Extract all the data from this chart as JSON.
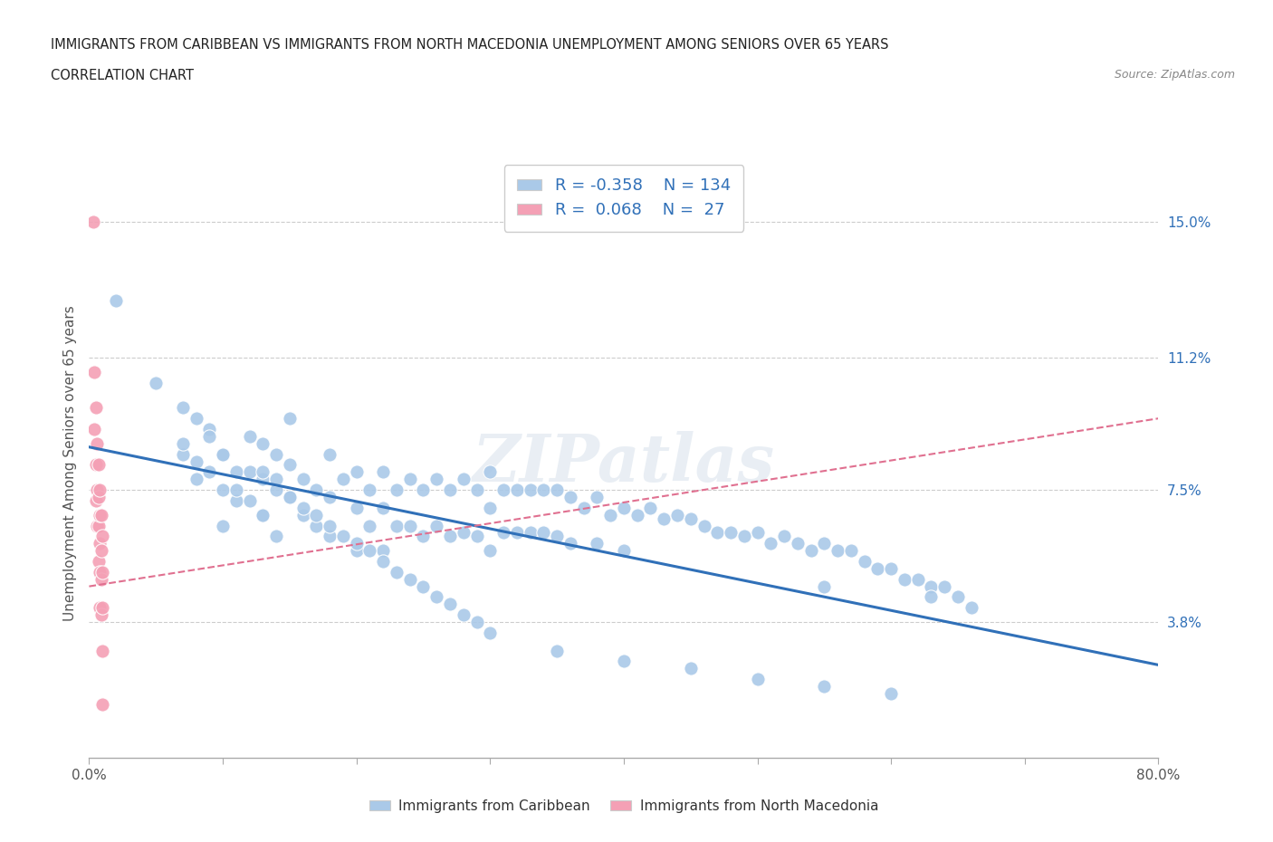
{
  "title_line1": "IMMIGRANTS FROM CARIBBEAN VS IMMIGRANTS FROM NORTH MACEDONIA UNEMPLOYMENT AMONG SENIORS OVER 65 YEARS",
  "title_line2": "CORRELATION CHART",
  "source": "Source: ZipAtlas.com",
  "ylabel": "Unemployment Among Seniors over 65 years",
  "xlim": [
    0.0,
    0.8
  ],
  "ylim": [
    0.0,
    0.165
  ],
  "xticks": [
    0.0,
    0.1,
    0.2,
    0.3,
    0.4,
    0.5,
    0.6,
    0.7,
    0.8
  ],
  "xticklabels": [
    "0.0%",
    "",
    "",
    "",
    "",
    "",
    "",
    "",
    "80.0%"
  ],
  "ytick_positions": [
    0.038,
    0.075,
    0.112,
    0.15
  ],
  "ytick_labels": [
    "3.8%",
    "7.5%",
    "11.2%",
    "15.0%"
  ],
  "r_caribbean": -0.358,
  "n_caribbean": 134,
  "r_macedonia": 0.068,
  "n_macedonia": 27,
  "color_caribbean": "#aac9e8",
  "color_macedonia": "#f4a0b5",
  "color_line_caribbean": "#3070b8",
  "color_line_macedonia": "#e07090",
  "watermark": "ZIPatlas",
  "legend_label_caribbean": "Immigrants from Caribbean",
  "legend_label_macedonia": "Immigrants from North Macedonia",
  "car_line_x0": 0.0,
  "car_line_y0": 0.087,
  "car_line_x1": 0.8,
  "car_line_y1": 0.026,
  "mac_line_x0": 0.0,
  "mac_line_y0": 0.048,
  "mac_line_x1": 0.8,
  "mac_line_y1": 0.095,
  "caribbean_x": [
    0.02,
    0.05,
    0.07,
    0.08,
    0.09,
    0.1,
    0.1,
    0.1,
    0.11,
    0.11,
    0.12,
    0.12,
    0.13,
    0.13,
    0.13,
    0.14,
    0.14,
    0.14,
    0.15,
    0.15,
    0.15,
    0.16,
    0.16,
    0.17,
    0.17,
    0.18,
    0.18,
    0.18,
    0.19,
    0.2,
    0.2,
    0.2,
    0.21,
    0.21,
    0.22,
    0.22,
    0.22,
    0.23,
    0.23,
    0.24,
    0.24,
    0.25,
    0.25,
    0.26,
    0.26,
    0.27,
    0.27,
    0.28,
    0.28,
    0.29,
    0.29,
    0.3,
    0.3,
    0.3,
    0.31,
    0.31,
    0.32,
    0.32,
    0.33,
    0.33,
    0.34,
    0.34,
    0.35,
    0.35,
    0.36,
    0.36,
    0.37,
    0.38,
    0.38,
    0.39,
    0.4,
    0.4,
    0.41,
    0.42,
    0.43,
    0.44,
    0.45,
    0.46,
    0.47,
    0.48,
    0.49,
    0.5,
    0.51,
    0.52,
    0.53,
    0.54,
    0.55,
    0.55,
    0.56,
    0.57,
    0.58,
    0.59,
    0.6,
    0.61,
    0.62,
    0.63,
    0.63,
    0.64,
    0.65,
    0.66,
    0.07,
    0.07,
    0.08,
    0.08,
    0.09,
    0.09,
    0.1,
    0.11,
    0.12,
    0.13,
    0.13,
    0.14,
    0.15,
    0.16,
    0.17,
    0.18,
    0.19,
    0.2,
    0.21,
    0.22,
    0.23,
    0.24,
    0.25,
    0.26,
    0.27,
    0.28,
    0.29,
    0.3,
    0.35,
    0.4,
    0.45,
    0.5,
    0.55,
    0.6
  ],
  "caribbean_y": [
    0.128,
    0.105,
    0.085,
    0.078,
    0.092,
    0.085,
    0.075,
    0.065,
    0.08,
    0.072,
    0.09,
    0.08,
    0.088,
    0.078,
    0.068,
    0.085,
    0.075,
    0.062,
    0.082,
    0.095,
    0.073,
    0.078,
    0.068,
    0.075,
    0.065,
    0.085,
    0.073,
    0.062,
    0.078,
    0.08,
    0.07,
    0.058,
    0.075,
    0.065,
    0.08,
    0.07,
    0.058,
    0.075,
    0.065,
    0.078,
    0.065,
    0.075,
    0.062,
    0.078,
    0.065,
    0.075,
    0.062,
    0.078,
    0.063,
    0.075,
    0.062,
    0.08,
    0.07,
    0.058,
    0.075,
    0.063,
    0.075,
    0.063,
    0.075,
    0.063,
    0.075,
    0.063,
    0.075,
    0.062,
    0.073,
    0.06,
    0.07,
    0.073,
    0.06,
    0.068,
    0.07,
    0.058,
    0.068,
    0.07,
    0.067,
    0.068,
    0.067,
    0.065,
    0.063,
    0.063,
    0.062,
    0.063,
    0.06,
    0.062,
    0.06,
    0.058,
    0.06,
    0.048,
    0.058,
    0.058,
    0.055,
    0.053,
    0.053,
    0.05,
    0.05,
    0.048,
    0.045,
    0.048,
    0.045,
    0.042,
    0.098,
    0.088,
    0.095,
    0.083,
    0.09,
    0.08,
    0.085,
    0.075,
    0.072,
    0.08,
    0.068,
    0.078,
    0.073,
    0.07,
    0.068,
    0.065,
    0.062,
    0.06,
    0.058,
    0.055,
    0.052,
    0.05,
    0.048,
    0.045,
    0.043,
    0.04,
    0.038,
    0.035,
    0.03,
    0.027,
    0.025,
    0.022,
    0.02,
    0.018
  ],
  "macedonia_x": [
    0.003,
    0.004,
    0.004,
    0.005,
    0.005,
    0.005,
    0.006,
    0.006,
    0.006,
    0.007,
    0.007,
    0.007,
    0.007,
    0.008,
    0.008,
    0.008,
    0.008,
    0.008,
    0.009,
    0.009,
    0.009,
    0.009,
    0.01,
    0.01,
    0.01,
    0.01,
    0.01
  ],
  "macedonia_y": [
    0.15,
    0.108,
    0.092,
    0.098,
    0.082,
    0.072,
    0.088,
    0.075,
    0.065,
    0.082,
    0.073,
    0.065,
    0.055,
    0.075,
    0.068,
    0.06,
    0.052,
    0.042,
    0.068,
    0.058,
    0.05,
    0.04,
    0.062,
    0.052,
    0.042,
    0.03,
    0.015
  ]
}
